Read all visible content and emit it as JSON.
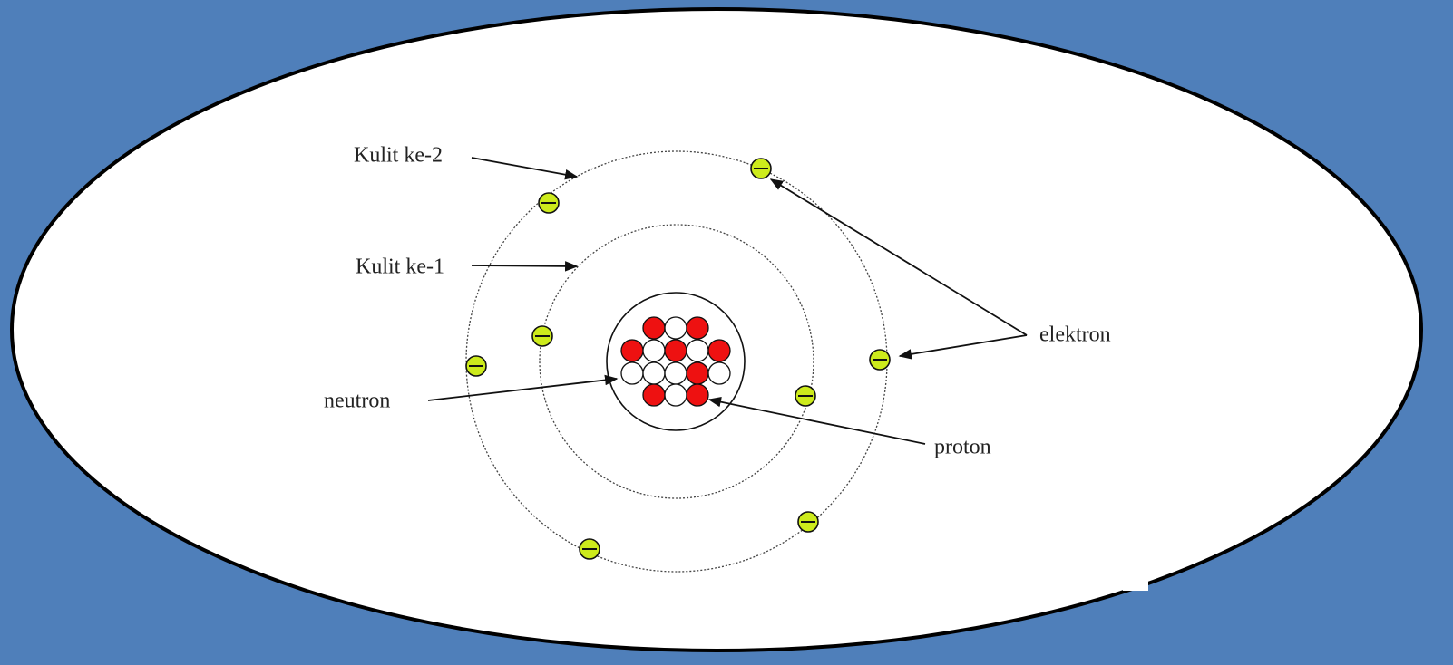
{
  "labels": {
    "shell_2": "Kulit ke-2",
    "shell_1": "Kulit ke-1",
    "electron": "elektron",
    "neutron": "neutron",
    "proton": "proton"
  }
}
